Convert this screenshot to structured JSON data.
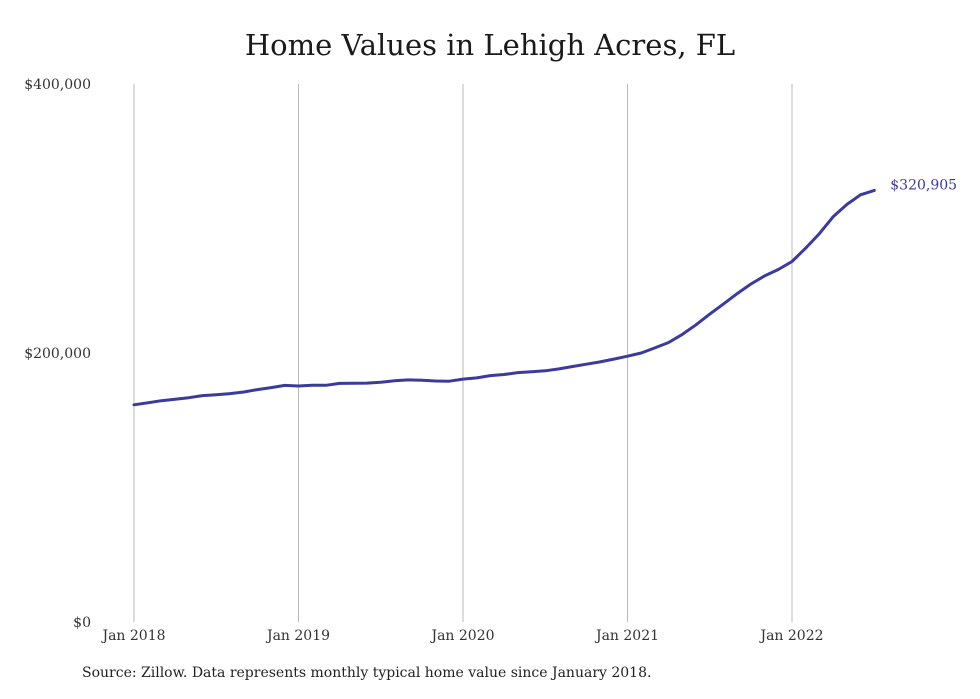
{
  "chart_data": {
    "type": "line",
    "title": "Home Values in Lehigh Acres, FL",
    "xlabel": "",
    "ylabel": "",
    "ylim": [
      0,
      400000
    ],
    "y_ticks": [
      0,
      200000,
      400000
    ],
    "y_tick_labels": [
      "$0",
      "$200,000",
      "$400,000"
    ],
    "x_ticks": [
      "2018-01",
      "2019-01",
      "2020-01",
      "2021-01",
      "2022-01"
    ],
    "x_tick_labels": [
      "Jan 2018",
      "Jan 2019",
      "Jan 2020",
      "Jan 2021",
      "Jan 2022"
    ],
    "grid": "vertical at x ticks",
    "line_color": "#3b3b9e",
    "end_label": "$320,905",
    "series": [
      {
        "x": [
          "2018-01",
          "2018-02",
          "2018-03",
          "2018-04",
          "2018-05",
          "2018-06",
          "2018-07",
          "2018-08",
          "2018-09",
          "2018-10",
          "2018-11",
          "2018-12",
          "2019-01",
          "2019-02",
          "2019-03",
          "2019-04",
          "2019-05",
          "2019-06",
          "2019-07",
          "2019-08",
          "2019-09",
          "2019-10",
          "2019-11",
          "2019-12",
          "2020-01",
          "2020-02",
          "2020-03",
          "2020-04",
          "2020-05",
          "2020-06",
          "2020-07",
          "2020-08",
          "2020-09",
          "2020-10",
          "2020-11",
          "2020-12",
          "2021-01",
          "2021-02",
          "2021-03",
          "2021-04",
          "2021-05",
          "2021-06",
          "2021-07",
          "2021-08",
          "2021-09",
          "2021-10",
          "2021-11",
          "2021-12",
          "2022-01",
          "2022-02",
          "2022-03",
          "2022-04",
          "2022-05",
          "2022-06",
          "2022-07"
        ],
        "values": [
          161500,
          163000,
          164500,
          165600,
          166800,
          168300,
          169000,
          169800,
          171000,
          172800,
          174300,
          175900,
          175500,
          176000,
          176000,
          177400,
          177500,
          177600,
          178200,
          179400,
          180000,
          179700,
          179200,
          179000,
          180600,
          181500,
          183200,
          184000,
          185400,
          186000,
          186800,
          188200,
          190000,
          191700,
          193400,
          195500,
          197600,
          200000,
          203800,
          207800,
          213800,
          221000,
          228900,
          236500,
          244200,
          251300,
          257300,
          262100,
          268000,
          278000,
          288800,
          301300,
          310400,
          317600,
          320905
        ]
      }
    ]
  },
  "source_note": "Source: Zillow. Data represents monthly typical home value since January 2018."
}
